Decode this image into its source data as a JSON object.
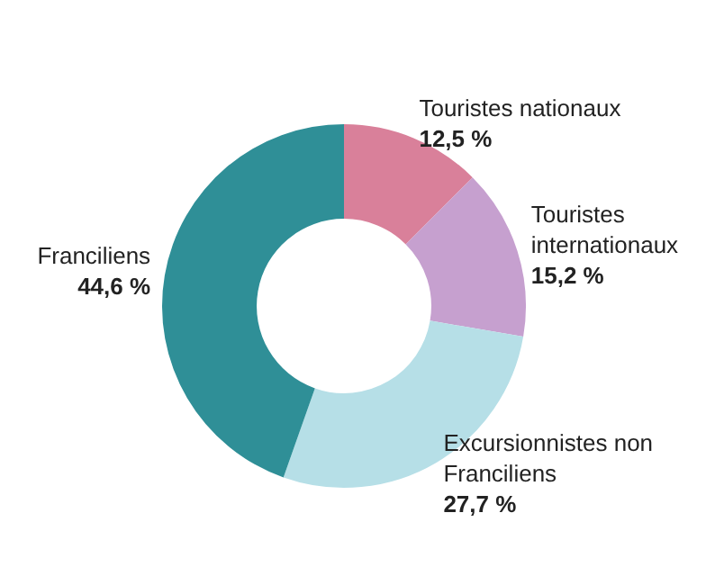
{
  "chart_data": {
    "type": "donut",
    "categories": [
      "Touristes nationaux",
      "Touristes internationaux",
      "Excursionnistes non Franciliens",
      "Franciliens"
    ],
    "values": [
      12.5,
      15.2,
      27.7,
      44.6
    ],
    "colors": [
      "#d9809a",
      "#c6a0cf",
      "#b6dfe7",
      "#2f8f97"
    ],
    "value_labels": [
      "12,5 %",
      "15,2 %",
      "27,7 %",
      "44,6 %"
    ],
    "legend": false
  }
}
